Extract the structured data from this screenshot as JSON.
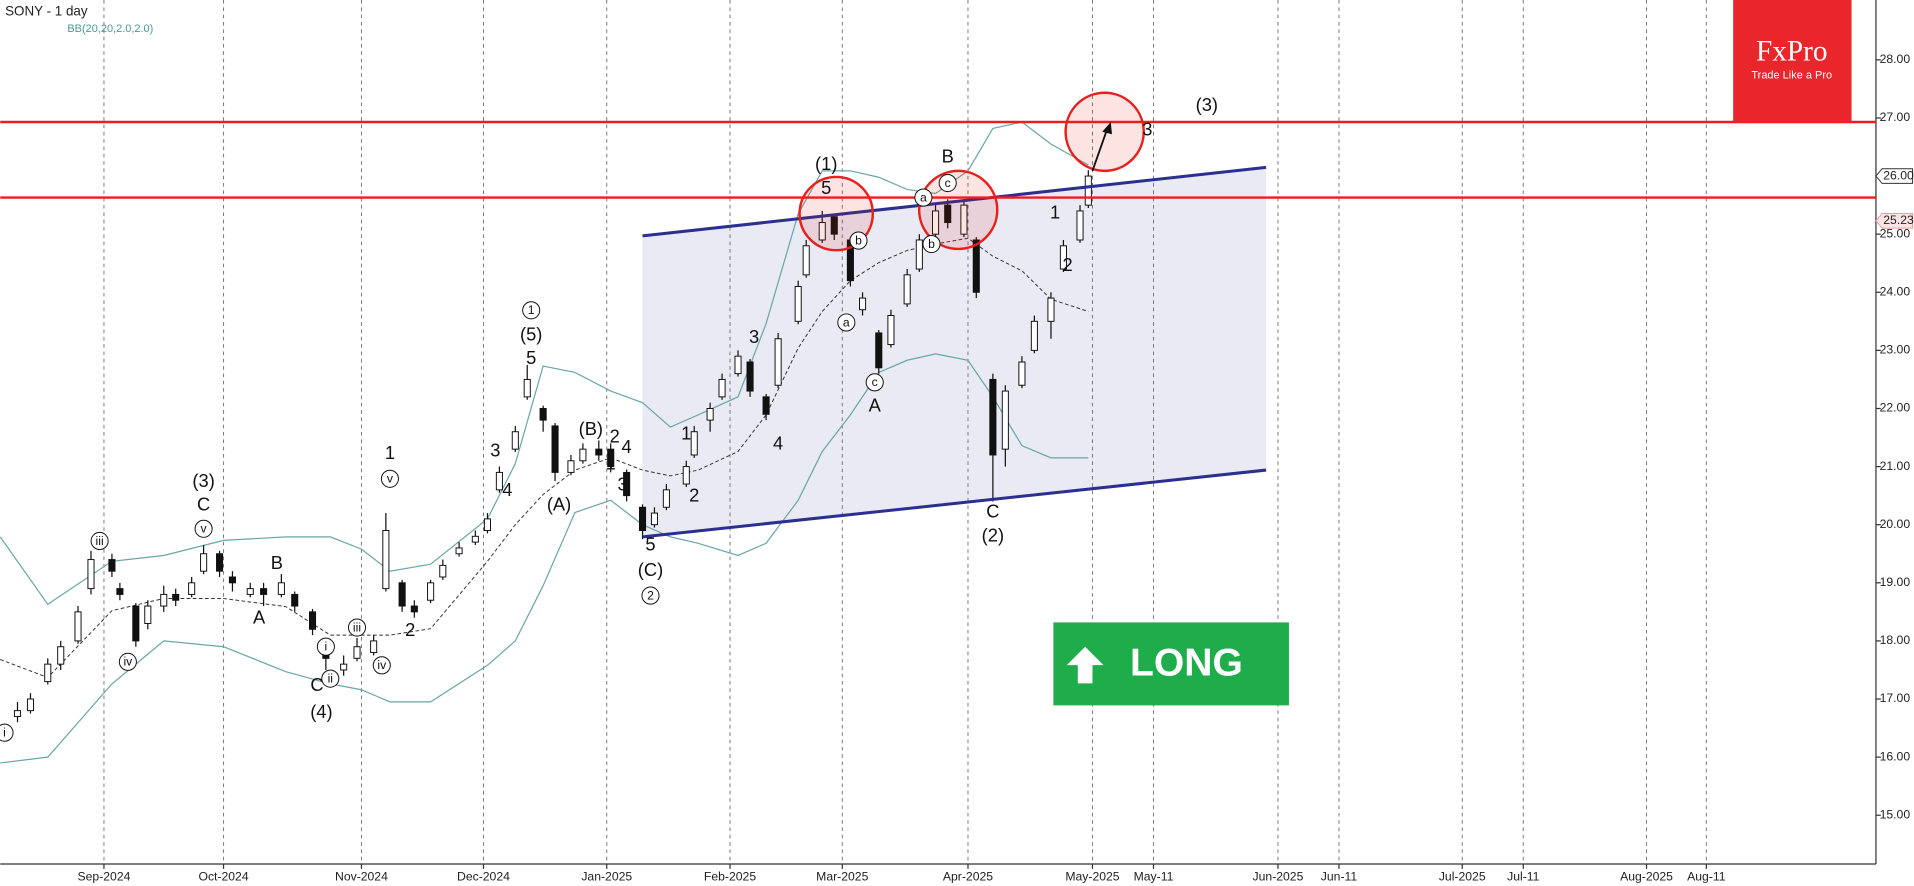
{
  "chart_data": {
    "type": "candlestick",
    "title": "SONY - 1 day",
    "xlim": [
      "2024-08-08",
      "2025-08-30"
    ],
    "xticks": [
      {
        "value": "2024-09-01",
        "label": "Sep-2024"
      },
      {
        "value": "2024-10-01",
        "label": "Oct-2024"
      },
      {
        "value": "2024-11-01",
        "label": "Nov-2024"
      },
      {
        "value": "2024-12-01",
        "label": "Dec-2024"
      },
      {
        "value": "2025-01-01",
        "label": "Jan-2025"
      },
      {
        "value": "2025-02-01",
        "label": "Feb-2025"
      },
      {
        "value": "2025-03-01",
        "label": "Mar-2025"
      },
      {
        "value": "2025-04-01",
        "label": "Apr-2025"
      },
      {
        "value": "2025-05-01",
        "label": "May-2025"
      },
      {
        "value": "2025-05-11",
        "label": "May-11"
      },
      {
        "value": "2025-06-01",
        "label": "Jun-2025"
      },
      {
        "value": "2025-06-11",
        "label": "Jun-11"
      },
      {
        "value": "2025-07-01",
        "label": "Jul-2025"
      },
      {
        "value": "2025-07-11",
        "label": "Jul-11"
      },
      {
        "value": "2025-08-01",
        "label": "Aug-2025"
      },
      {
        "value": "2025-08-11",
        "label": "Aug-11"
      }
    ],
    "ylim": [
      14.16,
      29.03
    ],
    "yticks": [
      {
        "value": 15,
        "label": "15.00"
      },
      {
        "value": 16,
        "label": "16.00"
      },
      {
        "value": 17,
        "label": "17.00"
      },
      {
        "value": 18,
        "label": "18.00"
      },
      {
        "value": 19,
        "label": "19.00"
      },
      {
        "value": 20,
        "label": "20.00"
      },
      {
        "value": 21,
        "label": "21.00"
      },
      {
        "value": 22,
        "label": "22.00"
      },
      {
        "value": 23,
        "label": "23.00"
      },
      {
        "value": 24,
        "label": "24.00"
      },
      {
        "value": 25,
        "label": "25.00"
      },
      {
        "value": 26,
        "label": "26.00"
      },
      {
        "value": 27,
        "label": "27.00"
      },
      {
        "value": 28,
        "label": "28.00"
      }
    ],
    "candles": {
      "dates": [
        "2024-08-12",
        "2024-08-15",
        "2024-08-19",
        "2024-08-22",
        "2024-08-26",
        "2024-08-29",
        "2024-09-03",
        "2024-09-05",
        "2024-09-09",
        "2024-09-12",
        "2024-09-16",
        "2024-09-19",
        "2024-09-23",
        "2024-09-26",
        "2024-09-30",
        "2024-10-03",
        "2024-10-07",
        "2024-10-10",
        "2024-10-14",
        "2024-10-17",
        "2024-10-21",
        "2024-10-24",
        "2024-10-28",
        "2024-10-31",
        "2024-11-04",
        "2024-11-07",
        "2024-11-11",
        "2024-11-14",
        "2024-11-18",
        "2024-11-21",
        "2024-11-25",
        "2024-11-29",
        "2024-12-02",
        "2024-12-05",
        "2024-12-09",
        "2024-12-12",
        "2024-12-16",
        "2024-12-19",
        "2024-12-23",
        "2024-12-26",
        "2024-12-30",
        "2025-01-02",
        "2025-01-06",
        "2025-01-10",
        "2025-01-13",
        "2025-01-16",
        "2025-01-21",
        "2025-01-23",
        "2025-01-27",
        "2025-01-30",
        "2025-02-03",
        "2025-02-06",
        "2025-02-10",
        "2025-02-13",
        "2025-02-18",
        "2025-02-20",
        "2025-02-24",
        "2025-02-27",
        "2025-03-03",
        "2025-03-06",
        "2025-03-10",
        "2025-03-13",
        "2025-03-17",
        "2025-03-20",
        "2025-03-24",
        "2025-03-27",
        "2025-03-31",
        "2025-04-03",
        "2025-04-07",
        "2025-04-10",
        "2025-04-14",
        "2025-04-17",
        "2025-04-21",
        "2025-04-24",
        "2025-04-28",
        "2025-04-30"
      ],
      "open": [
        16.7,
        16.8,
        17.3,
        17.6,
        18.0,
        18.9,
        19.4,
        18.9,
        18.6,
        18.3,
        18.6,
        18.8,
        18.8,
        19.2,
        19.5,
        19.1,
        18.8,
        18.9,
        18.8,
        18.8,
        18.5,
        17.9,
        17.5,
        17.7,
        17.8,
        18.9,
        19.0,
        18.6,
        18.7,
        19.1,
        19.5,
        19.7,
        19.9,
        20.6,
        21.3,
        22.2,
        22.0,
        21.7,
        20.9,
        21.1,
        21.3,
        21.3,
        20.9,
        20.3,
        20.0,
        20.3,
        20.7,
        21.2,
        21.8,
        22.2,
        22.6,
        22.8,
        22.2,
        22.4,
        23.5,
        24.3,
        24.9,
        25.3,
        24.9,
        23.7,
        23.3,
        23.1,
        23.8,
        24.4,
        25.0,
        25.5,
        25.0,
        24.9,
        22.5,
        21.3,
        22.4,
        23.0,
        23.5,
        24.4,
        24.9,
        25.5
      ],
      "high": [
        16.95,
        17.1,
        17.7,
        18.0,
        18.6,
        19.55,
        19.5,
        19.0,
        18.65,
        18.7,
        18.95,
        18.9,
        19.1,
        19.65,
        19.55,
        19.2,
        19.0,
        19.0,
        19.15,
        18.85,
        18.55,
        17.95,
        17.75,
        18.05,
        18.1,
        20.2,
        19.05,
        18.7,
        19.05,
        19.4,
        19.7,
        19.9,
        20.2,
        21.0,
        21.7,
        22.75,
        22.05,
        21.75,
        21.2,
        21.4,
        21.45,
        21.4,
        20.95,
        20.35,
        20.3,
        20.7,
        21.1,
        21.7,
        22.1,
        22.6,
        23.0,
        22.85,
        22.25,
        23.3,
        24.2,
        24.9,
        25.4,
        25.35,
        24.95,
        24.0,
        23.35,
        23.7,
        24.4,
        25.0,
        25.5,
        25.6,
        25.6,
        24.95,
        22.6,
        22.4,
        22.9,
        23.6,
        24.0,
        24.9,
        25.5,
        26.1
      ],
      "low": [
        16.6,
        16.75,
        17.25,
        17.5,
        17.95,
        18.8,
        19.1,
        18.7,
        17.9,
        18.2,
        18.5,
        18.6,
        18.75,
        19.15,
        19.1,
        18.85,
        18.75,
        18.6,
        18.75,
        18.5,
        18.1,
        17.5,
        17.4,
        17.65,
        17.75,
        18.85,
        18.5,
        18.4,
        18.65,
        19.05,
        19.45,
        19.65,
        19.85,
        20.55,
        21.25,
        22.15,
        21.6,
        20.75,
        20.85,
        21.05,
        21.1,
        20.9,
        20.4,
        19.75,
        19.95,
        20.25,
        20.65,
        21.15,
        21.6,
        22.15,
        22.55,
        22.2,
        21.8,
        22.35,
        23.45,
        24.25,
        24.85,
        24.9,
        24.1,
        23.6,
        22.6,
        23.05,
        23.75,
        24.35,
        24.95,
        25.1,
        24.95,
        23.9,
        20.4,
        21.0,
        22.35,
        22.95,
        23.2,
        24.35,
        24.85,
        25.45
      ],
      "close": [
        16.8,
        17.0,
        17.6,
        17.9,
        18.5,
        19.4,
        19.2,
        18.8,
        18.0,
        18.6,
        18.8,
        18.7,
        19.0,
        19.5,
        19.2,
        19.0,
        18.9,
        18.8,
        19.0,
        18.6,
        18.2,
        17.7,
        17.6,
        17.9,
        18.0,
        19.9,
        18.6,
        18.5,
        19.0,
        19.3,
        19.6,
        19.8,
        20.1,
        20.9,
        21.6,
        22.5,
        21.8,
        20.9,
        21.1,
        21.3,
        21.2,
        21.0,
        20.5,
        19.9,
        20.2,
        20.6,
        21.0,
        21.6,
        22.0,
        22.5,
        22.9,
        22.3,
        21.9,
        23.2,
        24.1,
        24.8,
        25.2,
        25.0,
        24.2,
        23.9,
        22.7,
        23.6,
        24.3,
        24.9,
        25.4,
        25.2,
        25.5,
        24.0,
        21.2,
        22.3,
        22.8,
        23.5,
        23.9,
        24.8,
        25.4,
        26.0
      ]
    },
    "bollinger": {
      "name": "BB(20,20,2.0,2.0)",
      "dates": [
        "2024-08-08",
        "2024-08-19",
        "2024-09-03",
        "2024-09-16",
        "2024-10-01",
        "2024-10-15",
        "2024-10-25",
        "2024-11-01",
        "2024-11-08",
        "2024-11-18",
        "2024-12-02",
        "2024-12-09",
        "2024-12-16",
        "2024-12-24",
        "2025-01-02",
        "2025-01-10",
        "2025-01-17",
        "2025-01-24",
        "2025-02-03",
        "2025-02-10",
        "2025-02-18",
        "2025-02-24",
        "2025-03-03",
        "2025-03-10",
        "2025-03-17",
        "2025-03-24",
        "2025-04-01",
        "2025-04-07",
        "2025-04-14",
        "2025-04-21",
        "2025-04-30"
      ],
      "upper": [
        19.79,
        18.63,
        19.37,
        19.47,
        19.73,
        19.79,
        19.79,
        19.58,
        19.2,
        19.32,
        20.1,
        21.05,
        22.73,
        22.62,
        22.3,
        22.1,
        21.68,
        21.89,
        22.2,
        23.46,
        25.35,
        26.09,
        26.09,
        25.98,
        25.77,
        25.7,
        26.09,
        26.82,
        26.93,
        26.55,
        26.19
      ],
      "middle": [
        17.68,
        17.37,
        18.52,
        18.73,
        18.73,
        18.59,
        18.1,
        18.1,
        18.1,
        18.21,
        19.37,
        20.0,
        20.52,
        20.94,
        21.15,
        20.94,
        20.84,
        20.94,
        21.26,
        21.89,
        23.04,
        23.67,
        24.2,
        24.51,
        24.72,
        24.83,
        24.93,
        24.62,
        24.37,
        23.88,
        23.67
      ],
      "lower": [
        15.9,
        16.0,
        17.26,
        18.0,
        17.9,
        17.47,
        17.26,
        17.16,
        16.95,
        16.95,
        17.58,
        18.0,
        18.95,
        20.21,
        20.42,
        20.0,
        19.79,
        19.68,
        19.47,
        19.68,
        20.42,
        21.26,
        21.89,
        22.62,
        22.83,
        22.94,
        22.83,
        22.2,
        21.36,
        21.15,
        21.15
      ]
    },
    "levels": [
      26.93,
      25.63
    ],
    "level_color": "#e8201c",
    "channel": {
      "dates": [
        "2025-01-10",
        "2025-05-30"
      ],
      "upper": [
        24.97,
        26.15
      ],
      "lower": [
        19.79,
        20.94
      ],
      "color": "#2b2f8f"
    },
    "price_labels": [
      {
        "value": 26,
        "label": "26.00"
      },
      {
        "value": 25.23,
        "label": "25.23"
      }
    ],
    "annotations": [
      {
        "text": "i",
        "x": "2024-08-09",
        "y": 16.42,
        "circled": true
      },
      {
        "text": "iii",
        "x": "2024-08-31",
        "y": 19.72,
        "circled": true
      },
      {
        "text": "iv",
        "x": "2024-09-07",
        "y": 17.64,
        "circled": true
      },
      {
        "text": "(3)",
        "x": "2024-09-26",
        "y": 20.73
      },
      {
        "text": "C",
        "x": "2024-09-26",
        "y": 20.33
      },
      {
        "text": "v",
        "x": "2024-09-26",
        "y": 19.93,
        "circled": true
      },
      {
        "text": "B",
        "x": "2024-10-13",
        "y": 19.32
      },
      {
        "text": "A",
        "x": "2024-10-09",
        "y": 18.38
      },
      {
        "text": "i",
        "x": "2024-10-24",
        "y": 17.9,
        "circled": true
      },
      {
        "text": "C",
        "x": "2024-10-22",
        "y": 17.22
      },
      {
        "text": "ii",
        "x": "2024-10-25",
        "y": 17.35,
        "circled": true
      },
      {
        "text": "(4)",
        "x": "2024-10-23",
        "y": 16.76
      },
      {
        "text": "iii",
        "x": "2024-10-31",
        "y": 18.23,
        "circled": true
      },
      {
        "text": "iv",
        "x": "2024-11-06",
        "y": 17.58,
        "circled": true
      },
      {
        "text": "1",
        "x": "2024-11-08",
        "y": 21.21
      },
      {
        "text": "v",
        "x": "2024-11-08",
        "y": 20.79,
        "circled": true
      },
      {
        "text": "2",
        "x": "2024-11-13",
        "y": 18.17
      },
      {
        "text": "3",
        "x": "2024-12-04",
        "y": 21.26
      },
      {
        "text": "4",
        "x": "2024-12-07",
        "y": 20.58
      },
      {
        "text": "1",
        "x": "2024-12-13",
        "y": 23.69,
        "circled": true
      },
      {
        "text": "(5)",
        "x": "2024-12-13",
        "y": 23.25
      },
      {
        "text": "5",
        "x": "2024-12-13",
        "y": 22.85
      },
      {
        "text": "(A)",
        "x": "2024-12-20",
        "y": 20.33
      },
      {
        "text": "(B)",
        "x": "2024-12-28",
        "y": 21.63
      },
      {
        "text": "1",
        "x": "2025-01-02",
        "y": 21.03
      },
      {
        "text": "2",
        "x": "2025-01-03",
        "y": 21.5
      },
      {
        "text": "3",
        "x": "2025-01-05",
        "y": 20.67
      },
      {
        "text": "4",
        "x": "2025-01-06",
        "y": 21.32
      },
      {
        "text": "5",
        "x": "2025-01-12",
        "y": 19.64
      },
      {
        "text": "(C)",
        "x": "2025-01-12",
        "y": 19.2
      },
      {
        "text": "2",
        "x": "2025-01-12",
        "y": 18.78,
        "circled": true
      },
      {
        "text": "1",
        "x": "2025-01-21",
        "y": 21.55
      },
      {
        "text": "2",
        "x": "2025-01-23",
        "y": 20.48
      },
      {
        "text": "3",
        "x": "2025-02-07",
        "y": 23.21
      },
      {
        "text": "4",
        "x": "2025-02-13",
        "y": 21.38
      },
      {
        "text": "(1)",
        "x": "2025-02-25",
        "y": 26.19
      },
      {
        "text": "5",
        "x": "2025-02-25",
        "y": 25.77
      },
      {
        "text": "a",
        "x": "2025-03-02",
        "y": 23.48,
        "circled": true
      },
      {
        "text": "b",
        "x": "2025-03-05",
        "y": 24.89,
        "circled": true
      },
      {
        "text": "c",
        "x": "2025-03-09",
        "y": 22.45,
        "circled": true
      },
      {
        "text": "A",
        "x": "2025-03-09",
        "y": 22.03
      },
      {
        "text": "a",
        "x": "2025-03-21",
        "y": 25.63,
        "circled": true
      },
      {
        "text": "b",
        "x": "2025-03-23",
        "y": 24.83,
        "circled": true
      },
      {
        "text": "B",
        "x": "2025-03-27",
        "y": 26.32
      },
      {
        "text": "c",
        "x": "2025-03-27",
        "y": 25.88,
        "circled": true
      },
      {
        "text": "C",
        "x": "2025-04-07",
        "y": 20.21
      },
      {
        "text": "(2)",
        "x": "2025-04-07",
        "y": 19.79
      },
      {
        "text": "1",
        "x": "2025-04-22",
        "y": 25.35
      },
      {
        "text": "2",
        "x": "2025-04-25",
        "y": 24.45
      },
      {
        "text": "3",
        "x": "2025-05-10",
        "y": 26.78
      },
      {
        "text": "(3)",
        "x": "2025-05-20",
        "y": 27.2
      }
    ],
    "signal": "LONG",
    "logo": {
      "name": "FxPro",
      "slogan": "Trade Like a Pro"
    }
  }
}
